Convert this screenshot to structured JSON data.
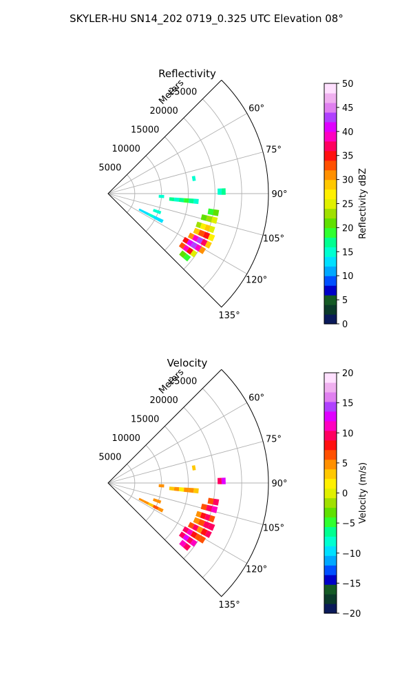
{
  "figure_title": "SKYLER-HU  SN14_202  0719_0.325 UTC Elevation 08°",
  "chart_data": [
    {
      "type": "polar-sector",
      "title": "Reflectivity",
      "field": "reflectivity",
      "radial_label": "Meters",
      "r_ticks": [
        "5000",
        "10000",
        "15000",
        "20000",
        "25000"
      ],
      "r_max": 30000,
      "theta_ticks": [
        "60°",
        "75°",
        "90°",
        "105°",
        "120°",
        "135°"
      ],
      "theta_range_deg": [
        45,
        135
      ],
      "colorbar": {
        "label": "Reflectivity dBZ",
        "min": 0,
        "max": 50,
        "ticks": [
          "0",
          "5",
          "10",
          "15",
          "20",
          "25",
          "30",
          "35",
          "40",
          "45",
          "50"
        ],
        "colors": [
          "#0a1a5a",
          "#0b3a2a",
          "#155a25",
          "#0000c8",
          "#0050ff",
          "#00a8ff",
          "#00e0ff",
          "#00ffd0",
          "#00ff90",
          "#30ff30",
          "#60e000",
          "#a0e000",
          "#e0f000",
          "#fff000",
          "#ffc800",
          "#ff9000",
          "#ff5000",
          "#ff1010",
          "#ff0060",
          "#ff00c0",
          "#e000ff",
          "#b040ff",
          "#e080f0",
          "#f0b0f0",
          "#ffe0ff"
        ]
      },
      "echo_cells": [
        {
          "az_deg": 80,
          "range_m": [
            16000,
            16600
          ],
          "values": [
            14
          ]
        },
        {
          "az_deg": 89,
          "range_m": [
            20500,
            22000
          ],
          "values": [
            15,
            16
          ]
        },
        {
          "az_deg": 93,
          "range_m": [
            9500,
            10500
          ],
          "values": [
            14,
            15
          ]
        },
        {
          "az_deg": 95,
          "range_m": [
            11500,
            17000
          ],
          "values": [
            16,
            15,
            17,
            18,
            16,
            15
          ]
        },
        {
          "az_deg": 100,
          "range_m": [
            19000,
            21000
          ],
          "values": [
            18,
            20
          ]
        },
        {
          "az_deg": 104,
          "range_m": [
            18000,
            21000
          ],
          "values": [
            20,
            23,
            25
          ]
        },
        {
          "az_deg": 109,
          "range_m": [
            17500,
            21000
          ],
          "values": [
            22,
            26,
            29,
            24
          ]
        },
        {
          "az_deg": 113,
          "range_m": [
            17500,
            21500
          ],
          "values": [
            28,
            32,
            35,
            27
          ]
        },
        {
          "az_deg": 117,
          "range_m": [
            17000,
            21500
          ],
          "values": [
            30,
            38,
            42,
            36,
            28
          ]
        },
        {
          "az_deg": 121,
          "range_m": [
            16500,
            21000
          ],
          "values": [
            34,
            40,
            43,
            38,
            30
          ]
        },
        {
          "az_deg": 125,
          "range_m": [
            16500,
            20000
          ],
          "values": [
            33,
            38,
            35,
            24
          ]
        },
        {
          "az_deg": 129,
          "range_m": [
            17500,
            19500
          ],
          "values": [
            20,
            18
          ]
        },
        {
          "az_deg": 117,
          "range_m": [
            6500,
            11500
          ],
          "values": [
            12,
            13,
            14,
            13,
            12
          ]
        },
        {
          "az_deg": 110,
          "range_m": [
            9000,
            10500
          ],
          "values": [
            14,
            15
          ]
        }
      ]
    },
    {
      "type": "polar-sector",
      "title": "Velocity",
      "field": "velocity",
      "radial_label": "Meters",
      "r_ticks": [
        "5000",
        "10000",
        "15000",
        "20000",
        "25000"
      ],
      "r_max": 30000,
      "theta_ticks": [
        "60°",
        "75°",
        "90°",
        "105°",
        "120°",
        "135°"
      ],
      "theta_range_deg": [
        45,
        135
      ],
      "colorbar": {
        "label": "Velocity (m/s)",
        "min": -20,
        "max": 20,
        "ticks": [
          "−20",
          "−15",
          "−10",
          "−5",
          "0",
          "5",
          "10",
          "15",
          "20"
        ],
        "colors": [
          "#0a1a5a",
          "#0b3a2a",
          "#155a25",
          "#0000c8",
          "#0050ff",
          "#00a8ff",
          "#00e0ff",
          "#00ffd0",
          "#00ff90",
          "#30ff30",
          "#60e000",
          "#a0e000",
          "#e0f000",
          "#fff000",
          "#ffc800",
          "#ff9000",
          "#ff5000",
          "#ff1010",
          "#ff0060",
          "#ff00c0",
          "#e000ff",
          "#b040ff",
          "#e080f0",
          "#f0b0f0",
          "#ffe0ff"
        ]
      },
      "echo_cells": [
        {
          "az_deg": 80,
          "range_m": [
            16000,
            16600
          ],
          "values": [
            3
          ]
        },
        {
          "az_deg": 89,
          "range_m": [
            20500,
            22000
          ],
          "values": [
            10,
            12
          ]
        },
        {
          "az_deg": 93,
          "range_m": [
            9500,
            10500
          ],
          "values": [
            4,
            5
          ]
        },
        {
          "az_deg": 95,
          "range_m": [
            11500,
            17000
          ],
          "values": [
            3,
            4,
            2,
            5,
            4,
            3
          ]
        },
        {
          "az_deg": 100,
          "range_m": [
            19000,
            21000
          ],
          "values": [
            6,
            10
          ]
        },
        {
          "az_deg": 104,
          "range_m": [
            18000,
            21000
          ],
          "values": [
            7,
            9,
            11
          ]
        },
        {
          "az_deg": 109,
          "range_m": [
            17500,
            21000
          ],
          "values": [
            5,
            8,
            10,
            6
          ]
        },
        {
          "az_deg": 113,
          "range_m": [
            17500,
            21500
          ],
          "values": [
            4,
            7,
            9,
            10
          ]
        },
        {
          "az_deg": 117,
          "range_m": [
            17000,
            21500
          ],
          "values": [
            6,
            9,
            5,
            8,
            10
          ]
        },
        {
          "az_deg": 121,
          "range_m": [
            16500,
            21000
          ],
          "values": [
            9,
            11,
            8,
            6,
            7
          ]
        },
        {
          "az_deg": 125,
          "range_m": [
            16500,
            20000
          ],
          "values": [
            10,
            12,
            9,
            11
          ]
        },
        {
          "az_deg": 129,
          "range_m": [
            17500,
            19500
          ],
          "values": [
            11,
            10
          ]
        },
        {
          "az_deg": 117,
          "range_m": [
            6500,
            11500
          ],
          "values": [
            4,
            5,
            3,
            6,
            4
          ]
        },
        {
          "az_deg": 110,
          "range_m": [
            9000,
            10500
          ],
          "values": [
            5,
            4
          ]
        }
      ]
    }
  ]
}
